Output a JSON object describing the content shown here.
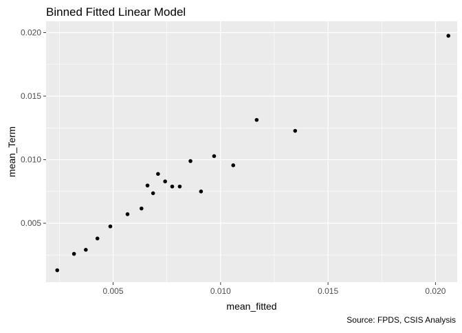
{
  "chart_data": {
    "type": "scatter",
    "title": "Binned Fitted Linear Model",
    "xlabel": "mean_fitted",
    "ylabel": "mean_Term",
    "caption": "Source: FPDS, CSIS Analysis",
    "xlim": [
      0.00188,
      0.02101
    ],
    "ylim": [
      0.00036,
      0.02089
    ],
    "x_ticks": [
      0.005,
      0.01,
      0.015,
      0.02
    ],
    "x_tick_labels": [
      "0.005",
      "0.010",
      "0.015",
      "0.020"
    ],
    "y_ticks": [
      0.005,
      0.01,
      0.015,
      0.02
    ],
    "y_tick_labels": [
      "0.005",
      "0.010",
      "0.015",
      "0.020"
    ],
    "grid": true,
    "panel_background": "#EBEBEB",
    "grid_color": "#FFFFFF",
    "point_color": "#000000",
    "points": [
      {
        "x": 0.0024,
        "y": 0.0013
      },
      {
        "x": 0.00318,
        "y": 0.00259
      },
      {
        "x": 0.00373,
        "y": 0.00291
      },
      {
        "x": 0.00427,
        "y": 0.0038
      },
      {
        "x": 0.00487,
        "y": 0.00475
      },
      {
        "x": 0.00567,
        "y": 0.00571
      },
      {
        "x": 0.00632,
        "y": 0.00616
      },
      {
        "x": 0.0066,
        "y": 0.00797
      },
      {
        "x": 0.00686,
        "y": 0.00736
      },
      {
        "x": 0.00709,
        "y": 0.00888
      },
      {
        "x": 0.00742,
        "y": 0.00829
      },
      {
        "x": 0.00775,
        "y": 0.00789
      },
      {
        "x": 0.0081,
        "y": 0.00789
      },
      {
        "x": 0.0086,
        "y": 0.00989
      },
      {
        "x": 0.00909,
        "y": 0.0075
      },
      {
        "x": 0.0097,
        "y": 0.01028
      },
      {
        "x": 0.01059,
        "y": 0.00956
      },
      {
        "x": 0.01168,
        "y": 0.01313
      },
      {
        "x": 0.01347,
        "y": 0.01227
      },
      {
        "x": 0.0206,
        "y": 0.01975
      }
    ]
  }
}
